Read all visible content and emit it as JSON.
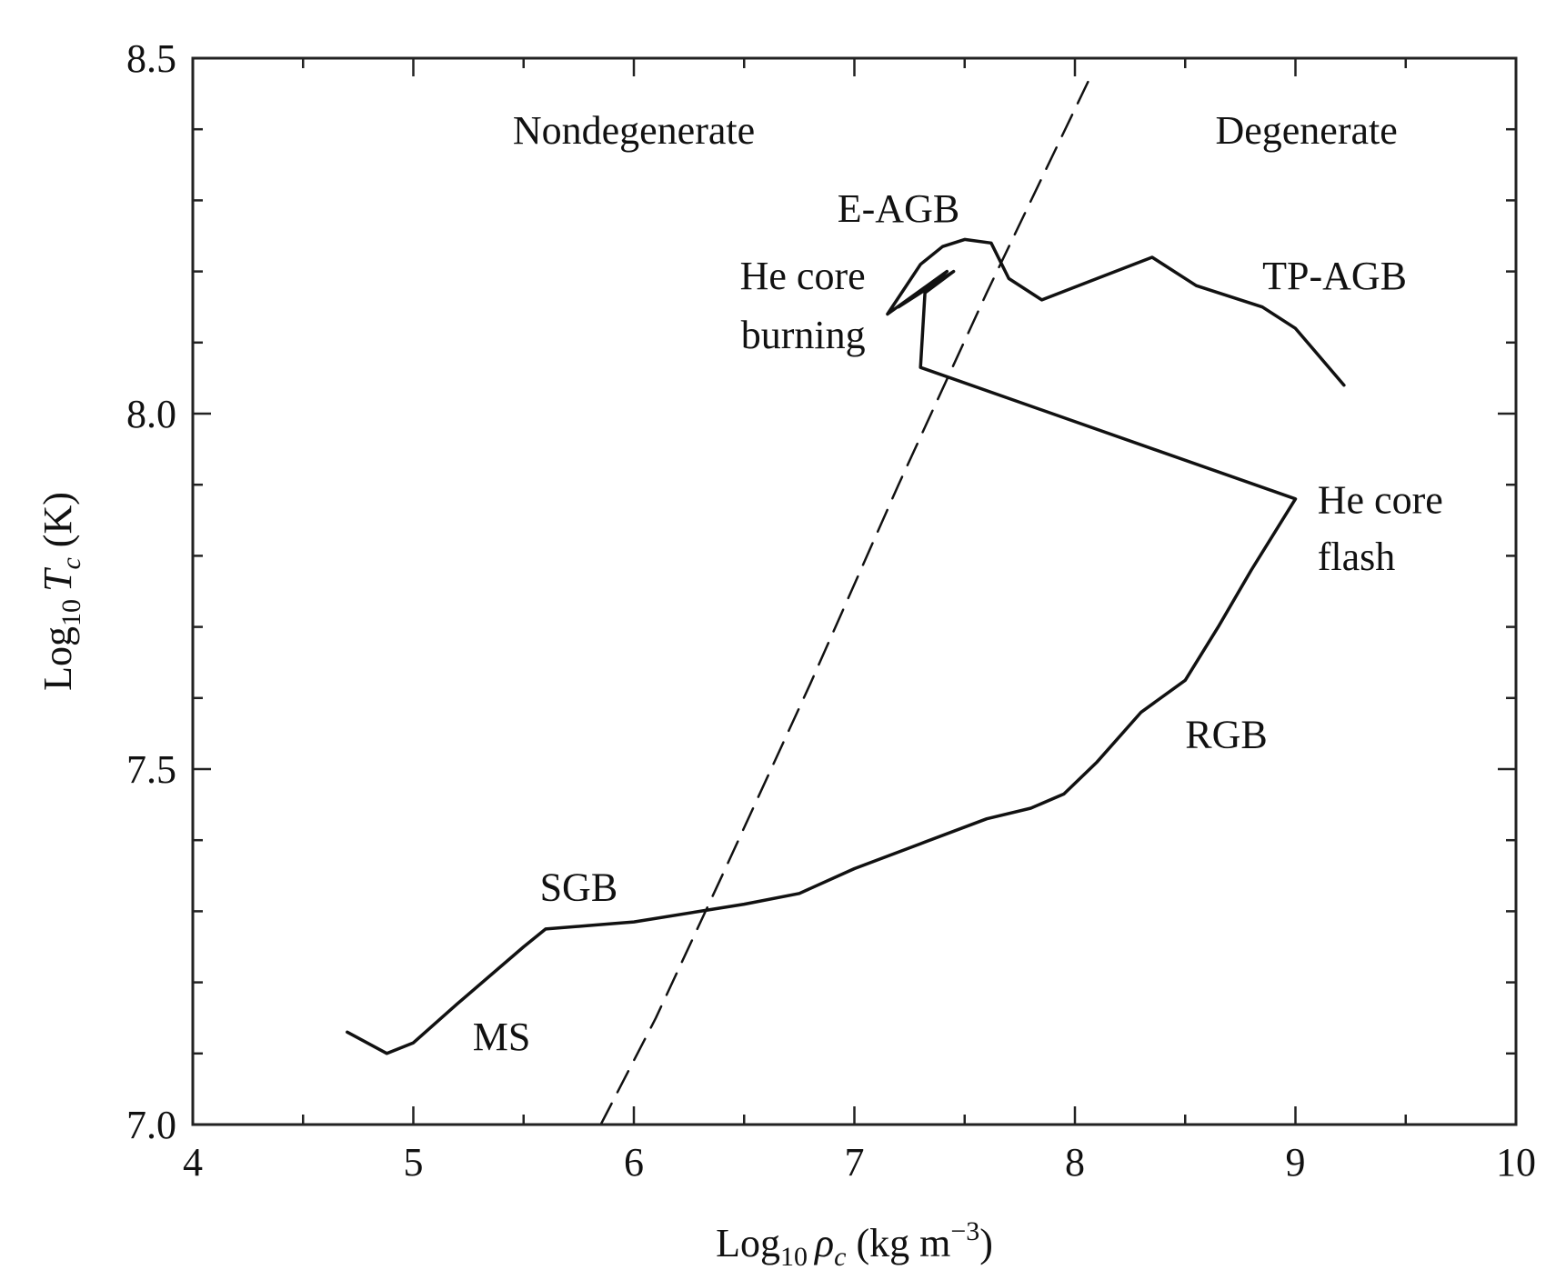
{
  "chart_data": {
    "type": "line",
    "xlabel": {
      "pre": "Log",
      "sub": "10",
      "sym": "ρ",
      "symsub": "c",
      "post": " (kg m",
      "sup": "−3",
      "close": ")"
    },
    "ylabel": {
      "pre": "Log",
      "sub": "10",
      "sym": "T",
      "symsub": "c",
      "post": " (K)"
    },
    "xlim": [
      4,
      10
    ],
    "ylim": [
      7.0,
      8.5
    ],
    "x_ticks": [
      4,
      5,
      6,
      7,
      8,
      9,
      10
    ],
    "y_ticks": [
      7.0,
      7.5,
      8.0,
      8.5
    ],
    "x_tick_labels": [
      "4",
      "5",
      "6",
      "7",
      "8",
      "9",
      "10"
    ],
    "y_tick_labels": [
      "7.0",
      "7.5",
      "8.0",
      "8.5"
    ],
    "x_minor_step": 0.5,
    "y_minor_step": 0.1,
    "grid": false,
    "series": [
      {
        "style": "solid",
        "x": [
          4.7,
          4.88,
          5.0,
          5.2,
          5.5,
          5.6,
          5.8,
          6.0,
          6.3,
          6.5,
          6.75,
          7.0,
          7.3,
          7.6,
          7.8,
          7.95,
          8.1,
          8.3,
          8.5,
          8.65,
          8.8,
          9.0,
          7.3,
          7.3,
          7.32,
          7.45,
          7.2,
          7.3,
          7.42,
          7.15,
          7.3,
          7.4,
          7.5,
          7.62,
          7.7,
          7.85,
          8.1,
          8.35,
          8.55,
          8.85,
          9.0,
          9.22
        ],
        "y": [
          7.13,
          7.1,
          7.115,
          7.17,
          7.25,
          7.275,
          7.28,
          7.285,
          7.3,
          7.31,
          7.325,
          7.36,
          7.395,
          7.43,
          7.445,
          7.465,
          7.51,
          7.58,
          7.625,
          7.7,
          7.78,
          7.88,
          8.065,
          8.065,
          8.17,
          8.2,
          8.15,
          8.17,
          8.2,
          8.14,
          8.21,
          8.235,
          8.245,
          8.24,
          8.19,
          8.16,
          8.19,
          8.22,
          8.18,
          8.15,
          8.12,
          8.04
        ]
      },
      {
        "style": "dashed",
        "x": [
          5.85,
          6.1,
          6.4,
          6.8,
          7.2,
          7.6,
          8.08
        ],
        "y": [
          7.0,
          7.15,
          7.35,
          7.62,
          7.9,
          8.17,
          8.48
        ]
      }
    ],
    "annotations": [
      {
        "text": "Nondegenerate",
        "x": 6.0,
        "y": 8.38,
        "anchor": "middle"
      },
      {
        "text": "Degenerate",
        "x": 9.05,
        "y": 8.38,
        "anchor": "middle"
      },
      {
        "text": "E-AGB",
        "x": 7.2,
        "y": 8.27,
        "anchor": "middle"
      },
      {
        "text": "He core",
        "x": 7.05,
        "y": 8.175,
        "anchor": "end"
      },
      {
        "text": "burning",
        "x": 7.05,
        "y": 8.092,
        "anchor": "end"
      },
      {
        "text": "TP-AGB",
        "x": 8.85,
        "y": 8.175,
        "anchor": "start"
      },
      {
        "text": "He core",
        "x": 9.1,
        "y": 7.86,
        "anchor": "start"
      },
      {
        "text": "flash",
        "x": 9.1,
        "y": 7.78,
        "anchor": "start"
      },
      {
        "text": "RGB",
        "x": 8.5,
        "y": 7.53,
        "anchor": "start"
      },
      {
        "text": "SGB",
        "x": 5.75,
        "y": 7.315,
        "anchor": "middle"
      },
      {
        "text": "MS",
        "x": 5.4,
        "y": 7.105,
        "anchor": "middle"
      }
    ]
  }
}
